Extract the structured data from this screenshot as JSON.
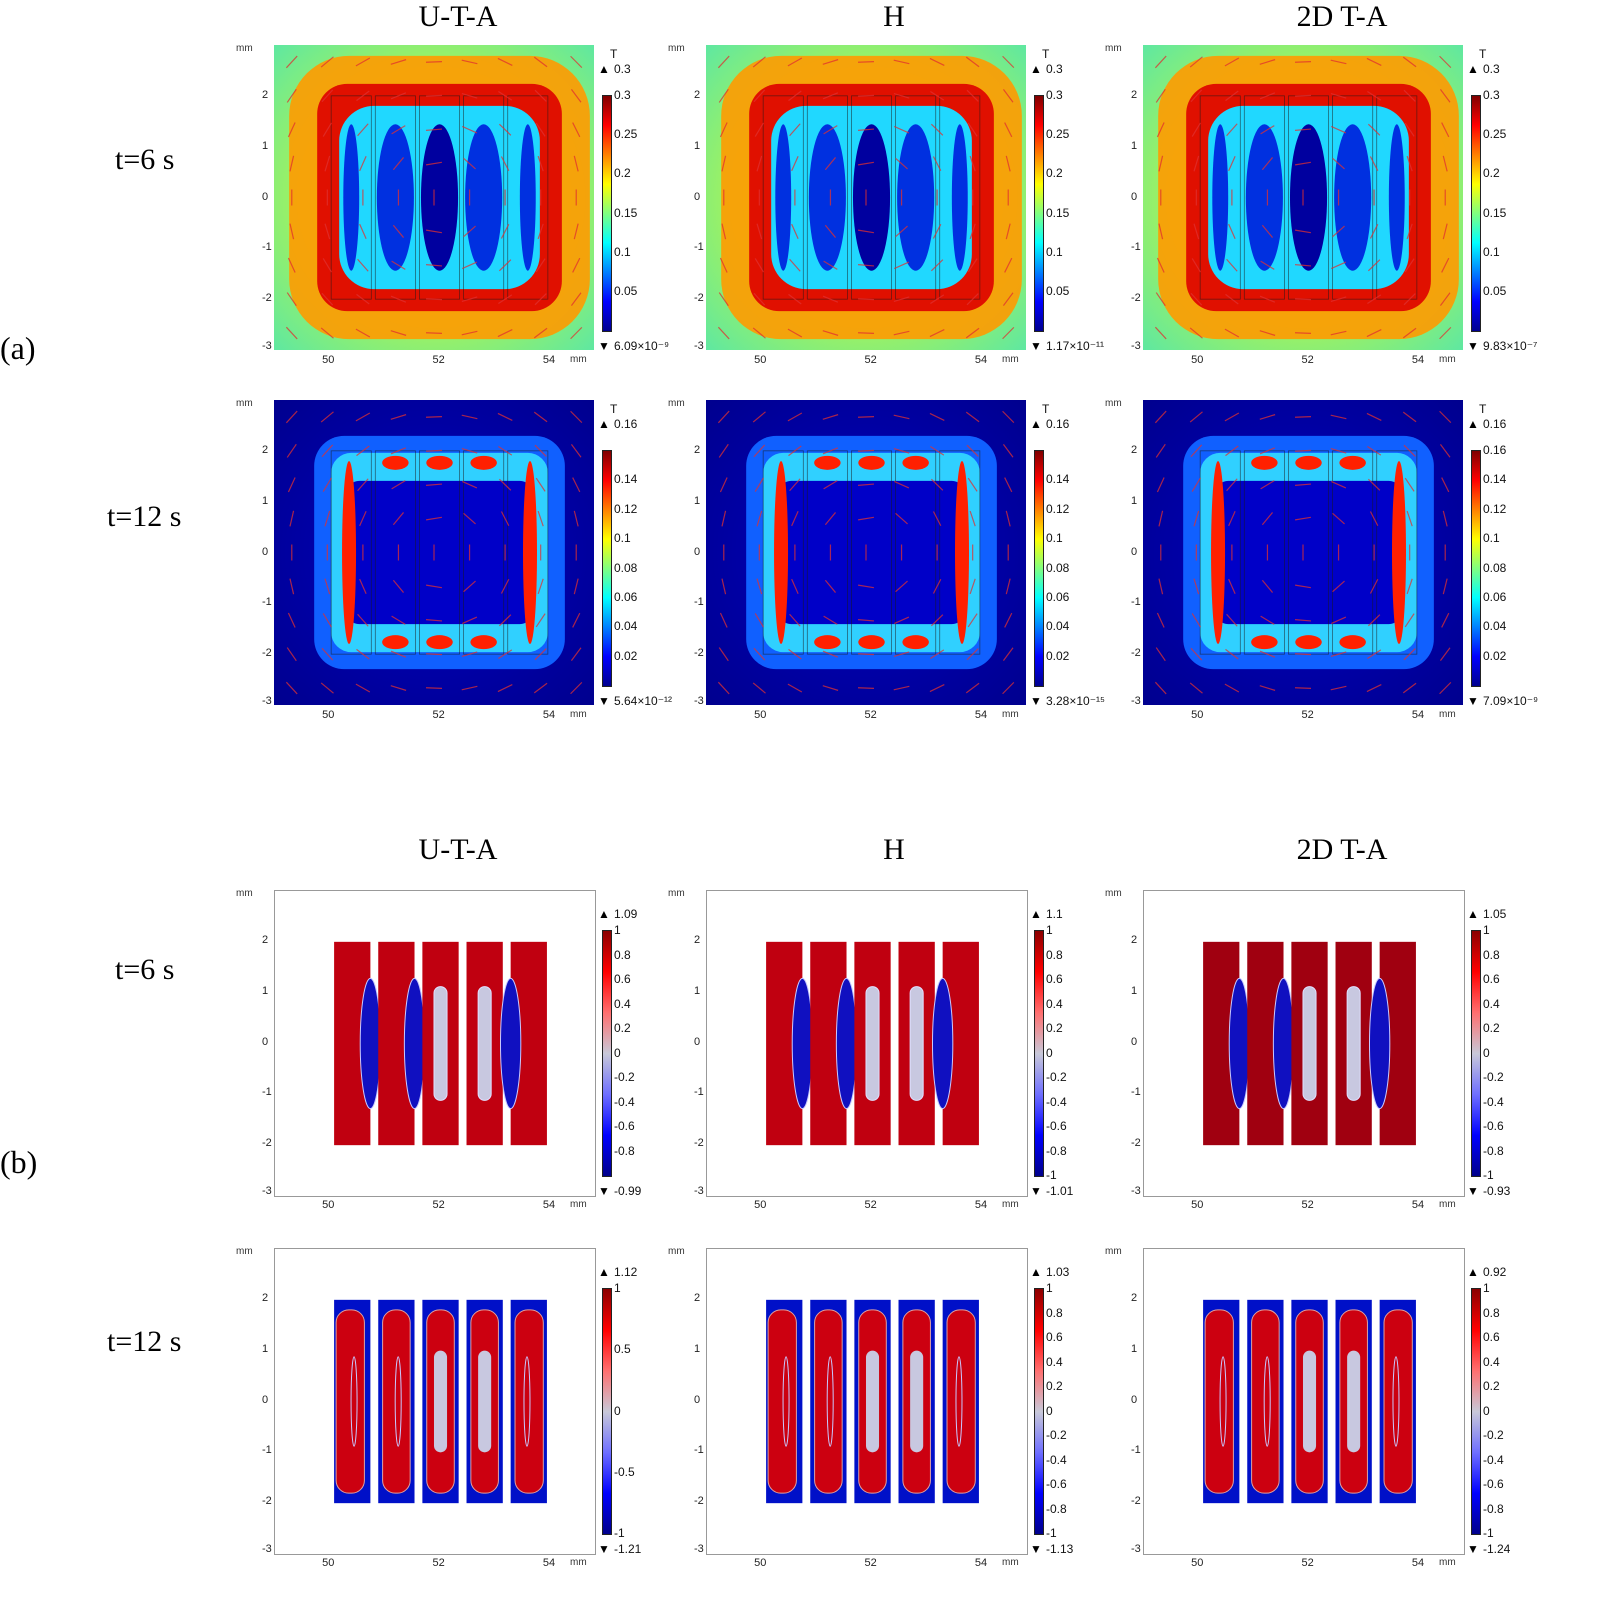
{
  "panels": {
    "a": {
      "label": "(a)",
      "columns": [
        "U-T-A",
        "H",
        "2D T-A"
      ],
      "rows": [
        "t=6 s",
        "t=12 s"
      ]
    },
    "b": {
      "label": "(b)",
      "columns": [
        "U-T-A",
        "H",
        "2D T-A"
      ],
      "rows": [
        "t=6 s",
        "t=12 s"
      ]
    }
  },
  "axes": {
    "unit": "mm",
    "x_ticks": [
      "50",
      "52",
      "54"
    ],
    "y_ticks": [
      "2",
      "1",
      "0",
      "-1",
      "-2",
      "-3"
    ],
    "xlim": [
      49,
      54.8
    ],
    "ylim": [
      -3,
      3
    ]
  },
  "chart_data": [
    {
      "type": "heatmap",
      "panel": "a",
      "row": "t=6 s",
      "column": "U-T-A",
      "colorbar_title": "T",
      "max": "0.3",
      "min": "6.09×10⁻⁹",
      "colorbar_ticks": [
        "0.3",
        "0.25",
        "0.2",
        "0.15",
        "0.1",
        "0.05"
      ]
    },
    {
      "type": "heatmap",
      "panel": "a",
      "row": "t=6 s",
      "column": "H",
      "colorbar_title": "T",
      "max": "0.3",
      "min": "1.17×10⁻¹¹",
      "colorbar_ticks": [
        "0.3",
        "0.25",
        "0.2",
        "0.15",
        "0.1",
        "0.05"
      ]
    },
    {
      "type": "heatmap",
      "panel": "a",
      "row": "t=6 s",
      "column": "2D T-A",
      "colorbar_title": "T",
      "max": "0.3",
      "min": "9.83×10⁻⁷",
      "colorbar_ticks": [
        "0.3",
        "0.25",
        "0.2",
        "0.15",
        "0.1",
        "0.05"
      ]
    },
    {
      "type": "heatmap",
      "panel": "a",
      "row": "t=12 s",
      "column": "U-T-A",
      "colorbar_title": "T",
      "max": "0.16",
      "min": "5.64×10⁻¹²",
      "colorbar_ticks": [
        "0.14",
        "0.12",
        "0.1",
        "0.08",
        "0.06",
        "0.04",
        "0.02"
      ]
    },
    {
      "type": "heatmap",
      "panel": "a",
      "row": "t=12 s",
      "column": "H",
      "colorbar_title": "T",
      "max": "0.16",
      "min": "3.28×10⁻¹⁵",
      "colorbar_ticks": [
        "0.14",
        "0.12",
        "0.1",
        "0.08",
        "0.06",
        "0.04",
        "0.02"
      ]
    },
    {
      "type": "heatmap",
      "panel": "a",
      "row": "t=12 s",
      "column": "2D T-A",
      "colorbar_title": "T",
      "max": "0.16",
      "min": "7.09×10⁻⁹",
      "colorbar_ticks": [
        "0.16",
        "0.14",
        "0.12",
        "0.1",
        "0.08",
        "0.06",
        "0.04",
        "0.02"
      ]
    },
    {
      "type": "heatmap",
      "panel": "b",
      "row": "t=6 s",
      "column": "U-T-A",
      "colorbar_title": "",
      "max": "1.09",
      "min": "-0.99",
      "colorbar_ticks": [
        "1",
        "0.8",
        "0.6",
        "0.4",
        "0.2",
        "0",
        "-0.2",
        "-0.4",
        "-0.6",
        "-0.8"
      ]
    },
    {
      "type": "heatmap",
      "panel": "b",
      "row": "t=6 s",
      "column": "H",
      "colorbar_title": "",
      "max": "1.1",
      "min": "-1.01",
      "colorbar_ticks": [
        "1",
        "0.8",
        "0.6",
        "0.4",
        "0.2",
        "0",
        "-0.2",
        "-0.4",
        "-0.6",
        "-0.8",
        "-1"
      ]
    },
    {
      "type": "heatmap",
      "panel": "b",
      "row": "t=6 s",
      "column": "2D T-A",
      "colorbar_title": "",
      "max": "1.05",
      "min": "-0.93",
      "colorbar_ticks": [
        "1",
        "0.8",
        "0.6",
        "0.4",
        "0.2",
        "0",
        "-0.2",
        "-0.4",
        "-0.6",
        "-0.8",
        "-1"
      ]
    },
    {
      "type": "heatmap",
      "panel": "b",
      "row": "t=12 s",
      "column": "U-T-A",
      "colorbar_title": "",
      "max": "1.12",
      "min": "-1.21",
      "colorbar_ticks": [
        "1",
        "0.5",
        "0",
        "-0.5",
        "-1"
      ]
    },
    {
      "type": "heatmap",
      "panel": "b",
      "row": "t=12 s",
      "column": "H",
      "colorbar_title": "",
      "max": "1.03",
      "min": "-1.13",
      "colorbar_ticks": [
        "1",
        "0.8",
        "0.6",
        "0.4",
        "0.2",
        "0",
        "-0.2",
        "-0.4",
        "-0.6",
        "-0.8",
        "-1"
      ]
    },
    {
      "type": "heatmap",
      "panel": "b",
      "row": "t=12 s",
      "column": "2D T-A",
      "colorbar_title": "",
      "max": "0.92",
      "min": "-1.24",
      "colorbar_ticks": [
        "1",
        "0.8",
        "0.6",
        "0.4",
        "0.2",
        "0",
        "-0.2",
        "-0.4",
        "-0.6",
        "-0.8",
        "-1"
      ]
    }
  ]
}
